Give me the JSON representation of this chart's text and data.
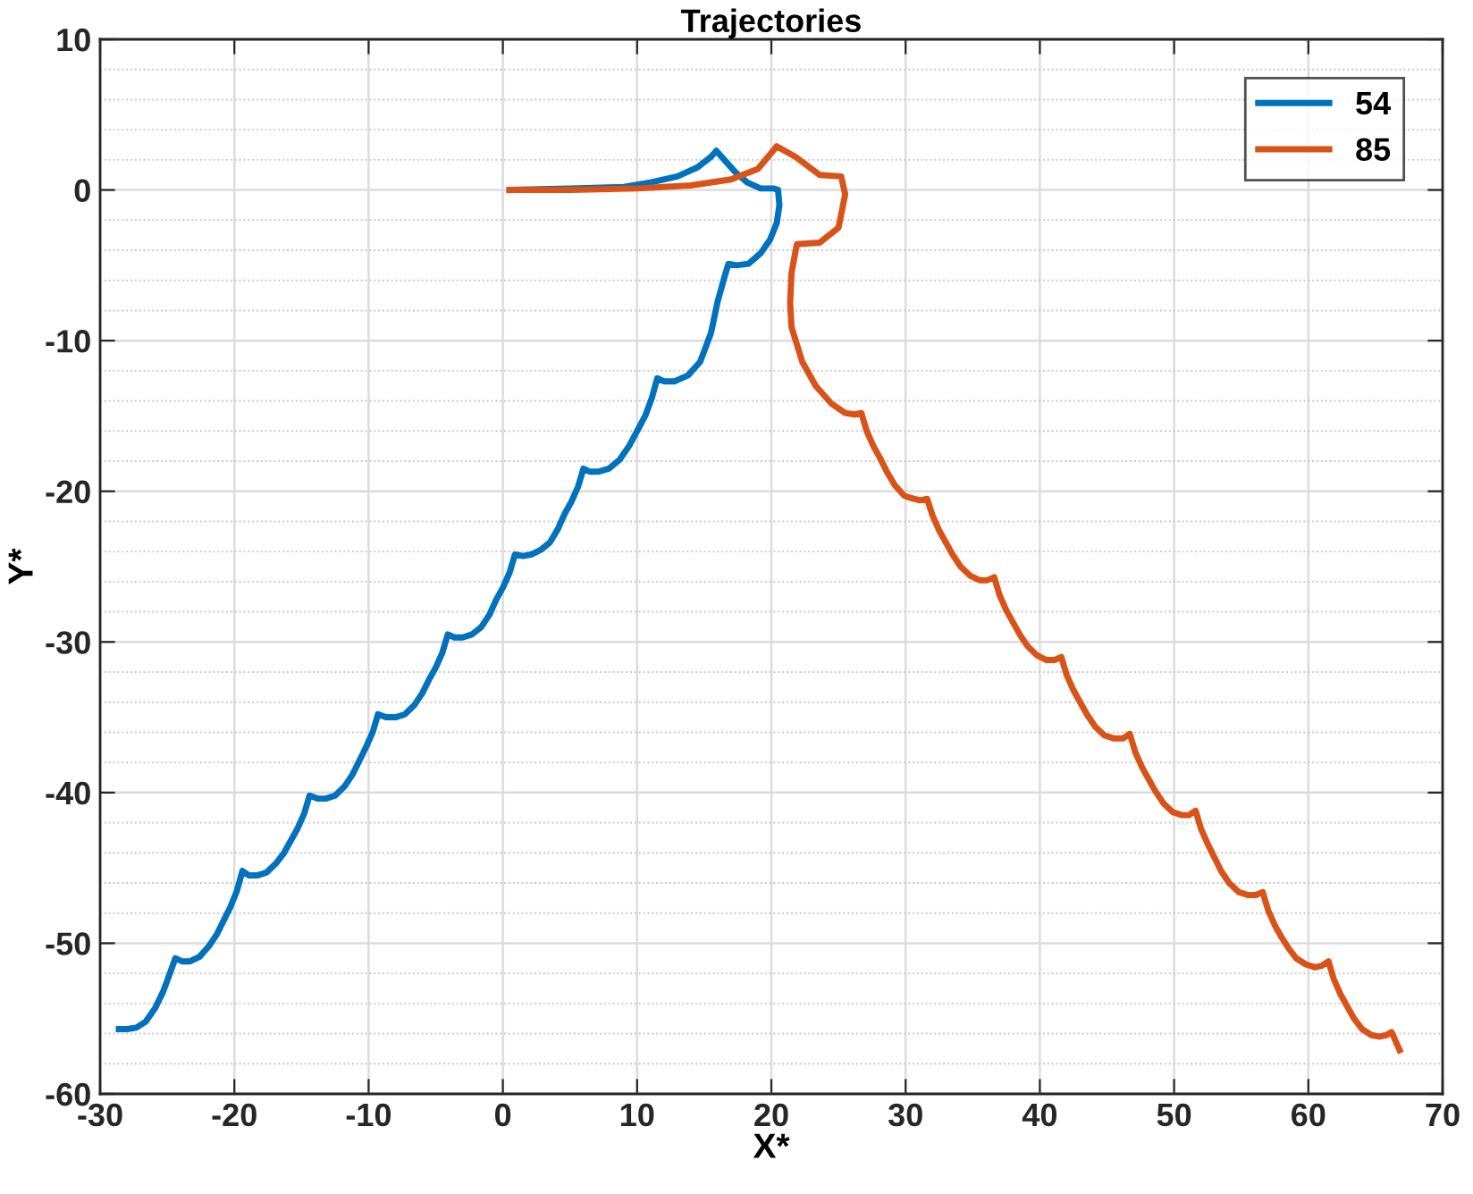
{
  "chart_data": {
    "type": "line",
    "title": "Trajectories",
    "xlabel": "X*",
    "ylabel": "Y*",
    "xlim": [
      -30,
      70
    ],
    "ylim": [
      -60,
      10
    ],
    "xticks": [
      -30,
      -20,
      -10,
      0,
      10,
      20,
      30,
      40,
      50,
      60,
      70
    ],
    "yticks": [
      -60,
      -50,
      -40,
      -30,
      -20,
      -10,
      0,
      10
    ],
    "grid": true,
    "legend": "top right",
    "line_style": "solid",
    "marker": "none",
    "series": [
      {
        "name": "54",
        "color": "#0072bd",
        "x": [
          0.5,
          5,
          9,
          11,
          13,
          14.5,
          15.5,
          15.9,
          16.5,
          17.3,
          18.2,
          19.2,
          20.2,
          20.5,
          20.6,
          20.4,
          19.9,
          19.2,
          18.3,
          17.4,
          16.8,
          16.5,
          16.0,
          15.5,
          14.7,
          13.8,
          12.8,
          12.0,
          11.5,
          11.1,
          10.6,
          10.0,
          9.4,
          8.7,
          7.9,
          7.1,
          6.5,
          6.0,
          5.6,
          5.1,
          4.6,
          4.1,
          3.5,
          2.8,
          2.1,
          1.5,
          0.9,
          0.5,
          0.0,
          -0.5,
          -1.0,
          -1.6,
          -2.3,
          -3.0,
          -3.6,
          -4.1,
          -4.5,
          -5.0,
          -5.5,
          -6.0,
          -6.6,
          -7.3,
          -8.0,
          -8.7,
          -9.3,
          -9.7,
          -10.2,
          -10.7,
          -11.2,
          -11.8,
          -12.5,
          -13.2,
          -13.8,
          -14.4,
          -14.8,
          -15.3,
          -15.8,
          -16.3,
          -16.9,
          -17.6,
          -18.3,
          -18.9,
          -19.4,
          -19.8,
          -20.3,
          -20.8,
          -21.3,
          -21.9,
          -22.6,
          -23.3,
          -23.9,
          -24.4,
          -24.8,
          -25.3,
          -25.9,
          -26.6,
          -27.3,
          -28.0,
          -28.6
        ],
        "values": [
          0,
          0.1,
          0.2,
          0.5,
          0.9,
          1.5,
          2.2,
          2.6,
          2.0,
          1.2,
          0.5,
          0.1,
          0.1,
          0,
          -1,
          -2.2,
          -3.3,
          -4.2,
          -4.9,
          -5.0,
          -4.9,
          -5.8,
          -7.4,
          -9.5,
          -11.4,
          -12.3,
          -12.7,
          -12.7,
          -12.5,
          -13.8,
          -15.0,
          -16.0,
          -17.0,
          -17.9,
          -18.5,
          -18.7,
          -18.7,
          -18.5,
          -19.7,
          -20.7,
          -21.5,
          -22.5,
          -23.4,
          -23.9,
          -24.2,
          -24.3,
          -24.2,
          -25.4,
          -26.4,
          -27.2,
          -28.2,
          -29.0,
          -29.5,
          -29.7,
          -29.7,
          -29.5,
          -30.7,
          -31.7,
          -32.5,
          -33.4,
          -34.2,
          -34.8,
          -35.0,
          -35.0,
          -34.8,
          -36.0,
          -37.0,
          -37.9,
          -38.8,
          -39.6,
          -40.2,
          -40.4,
          -40.4,
          -40.2,
          -41.4,
          -42.4,
          -43.2,
          -44.0,
          -44.7,
          -45.3,
          -45.5,
          -45.5,
          -45.2,
          -46.5,
          -47.6,
          -48.5,
          -49.4,
          -50.2,
          -50.9,
          -51.2,
          -51.2,
          -51.0,
          -52.0,
          -53.2,
          -54.3,
          -55.2,
          -55.6,
          -55.7,
          -55.7
        ]
      },
      {
        "name": "85",
        "color": "#d95319",
        "x": [
          0.5,
          5,
          10,
          14,
          17,
          19,
          20.4,
          21.8,
          23.6,
          25.2,
          25.5,
          25.0,
          23.6,
          21.9,
          21.5,
          21.4,
          21.5,
          22.3,
          23.3,
          24.5,
          25.5,
          26.2,
          26.7,
          27.1,
          27.6,
          28.1,
          28.6,
          29.2,
          29.9,
          30.6,
          31.1,
          31.6,
          32.0,
          32.5,
          33.0,
          33.5,
          34.1,
          34.8,
          35.5,
          36.1,
          36.6,
          37.0,
          37.5,
          38.0,
          38.5,
          39.1,
          39.8,
          40.5,
          41.1,
          41.6,
          42.0,
          42.5,
          43.0,
          43.5,
          44.1,
          44.8,
          45.5,
          46.2,
          46.7,
          47.1,
          47.6,
          48.1,
          48.6,
          49.2,
          49.9,
          50.6,
          51.1,
          51.6,
          52.0,
          52.5,
          53.0,
          53.5,
          54.1,
          54.8,
          55.5,
          56.1,
          56.6,
          57.0,
          57.5,
          58.0,
          58.5,
          59.1,
          59.8,
          60.5,
          61.0,
          61.5,
          61.9,
          62.4,
          62.9,
          63.4,
          64.0,
          64.7,
          65.3,
          65.8,
          66.2,
          66.8
        ],
        "values": [
          0,
          0,
          0.1,
          0.3,
          0.7,
          1.4,
          2.9,
          2.2,
          1.0,
          0.9,
          -0.3,
          -2.5,
          -3.5,
          -3.6,
          -5.5,
          -7.5,
          -9.1,
          -11.4,
          -13.0,
          -14.2,
          -14.8,
          -14.9,
          -14.8,
          -16.0,
          -17.0,
          -17.8,
          -18.7,
          -19.6,
          -20.3,
          -20.5,
          -20.6,
          -20.5,
          -21.6,
          -22.6,
          -23.4,
          -24.2,
          -25.0,
          -25.6,
          -25.9,
          -25.9,
          -25.7,
          -26.9,
          -27.9,
          -28.7,
          -29.5,
          -30.3,
          -30.9,
          -31.2,
          -31.2,
          -31.0,
          -32.2,
          -33.2,
          -34.0,
          -34.8,
          -35.6,
          -36.2,
          -36.4,
          -36.4,
          -36.1,
          -37.3,
          -38.3,
          -39.1,
          -39.9,
          -40.7,
          -41.3,
          -41.5,
          -41.5,
          -41.2,
          -42.4,
          -43.4,
          -44.3,
          -45.2,
          -46.0,
          -46.6,
          -46.8,
          -46.8,
          -46.6,
          -47.8,
          -48.8,
          -49.6,
          -50.3,
          -51.0,
          -51.4,
          -51.6,
          -51.5,
          -51.2,
          -52.4,
          -53.4,
          -54.2,
          -55.0,
          -55.7,
          -56.1,
          -56.2,
          -56.1,
          -55.9,
          -57.1
        ]
      }
    ]
  }
}
